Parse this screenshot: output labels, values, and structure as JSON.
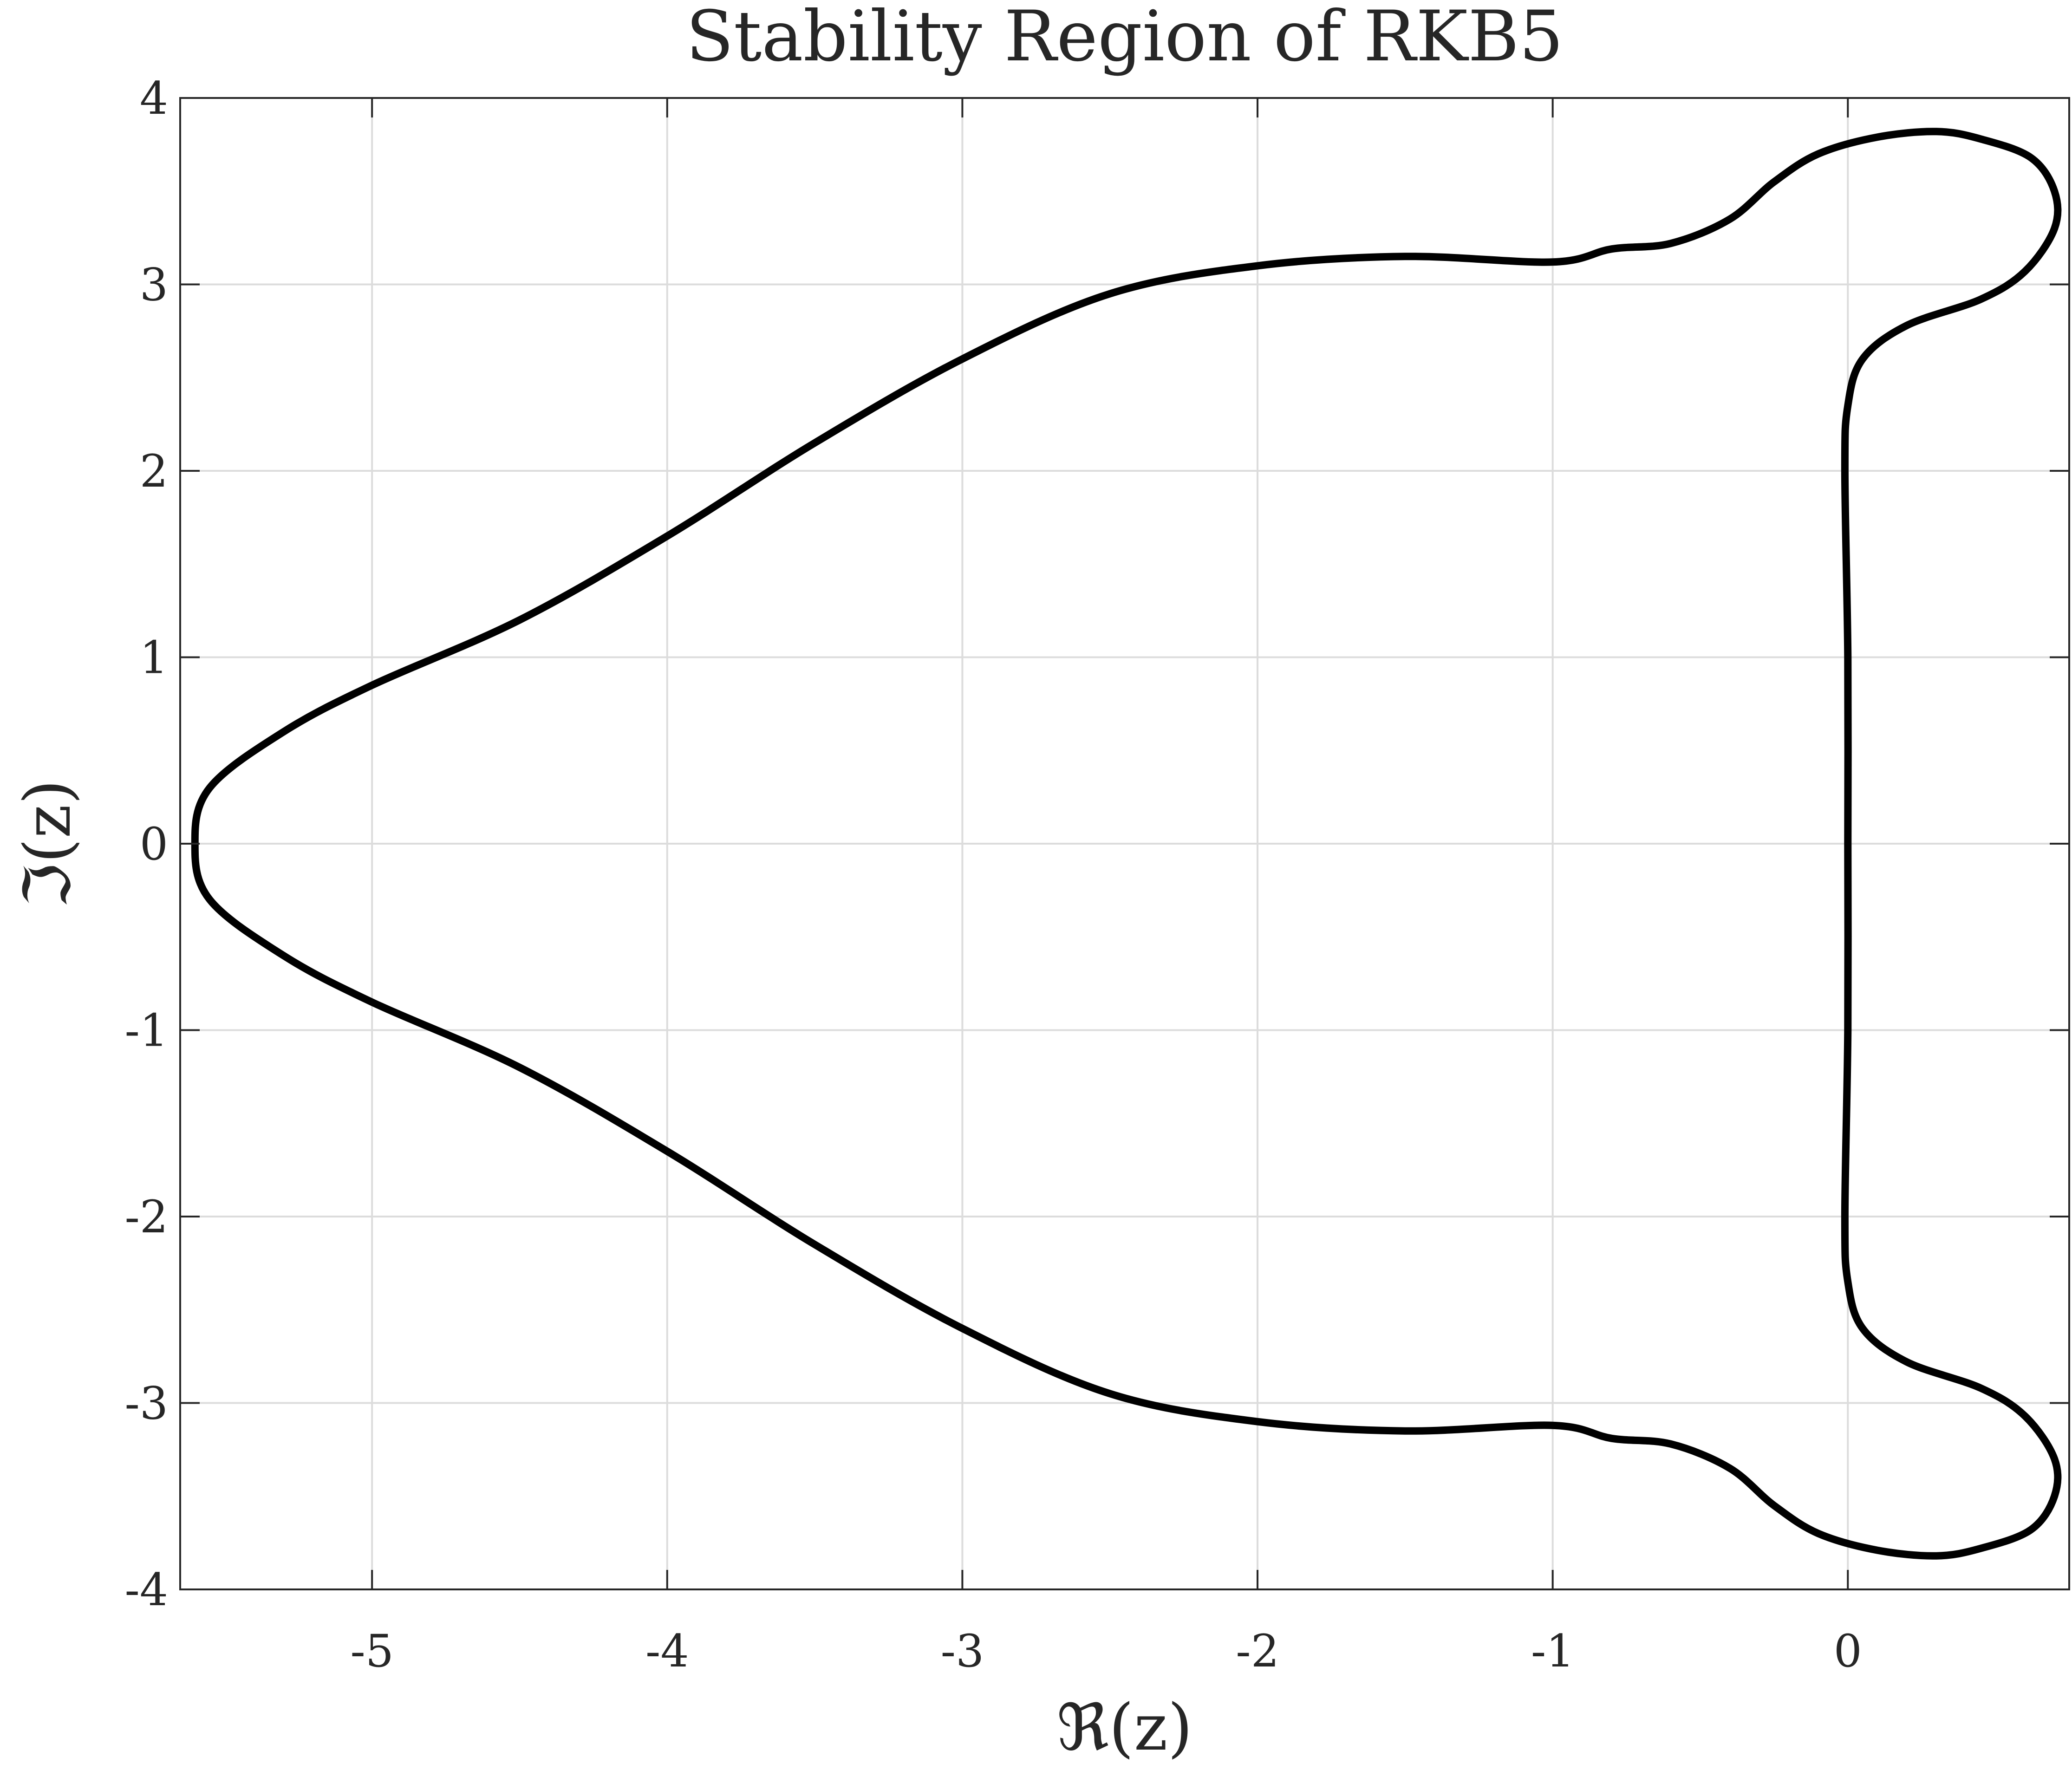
{
  "chart_data": {
    "type": "line",
    "title": "Stability Region of RKB5",
    "xlabel": "ℜ(z)",
    "ylabel": "ℑ(z)",
    "xlim": [
      -5.65,
      0.75
    ],
    "ylim": [
      -4,
      4
    ],
    "grid": true,
    "x_ticks": [
      -5,
      -4,
      -3,
      -2,
      -1,
      0
    ],
    "y_ticks": [
      -4,
      -3,
      -2,
      -1,
      0,
      1,
      2,
      3,
      4
    ],
    "x_tick_labels": [
      "-5",
      "-4",
      "-3",
      "-2",
      "-1",
      "0"
    ],
    "y_tick_labels": [
      "-4",
      "-3",
      "-2",
      "-1",
      "0",
      "1",
      "2",
      "3",
      "4"
    ],
    "line_color": "#000000",
    "series": [
      {
        "closed": true,
        "points": [
          [
            0.0,
            0.0
          ],
          [
            0.0,
            1.0
          ],
          [
            -0.01,
            2.0
          ],
          [
            0.0,
            2.35
          ],
          [
            0.05,
            2.6
          ],
          [
            0.2,
            2.78
          ],
          [
            0.45,
            2.92
          ],
          [
            0.6,
            3.07
          ],
          [
            0.7,
            3.3
          ],
          [
            0.7,
            3.5
          ],
          [
            0.62,
            3.68
          ],
          [
            0.45,
            3.78
          ],
          [
            0.3,
            3.82
          ],
          [
            0.1,
            3.79
          ],
          [
            -0.1,
            3.7
          ],
          [
            -0.25,
            3.55
          ],
          [
            -0.4,
            3.35
          ],
          [
            -0.6,
            3.22
          ],
          [
            -0.8,
            3.19
          ],
          [
            -1.0,
            3.12
          ],
          [
            -1.5,
            3.15
          ],
          [
            -2.0,
            3.1
          ],
          [
            -2.5,
            2.95
          ],
          [
            -3.0,
            2.6
          ],
          [
            -3.5,
            2.15
          ],
          [
            -4.0,
            1.65
          ],
          [
            -4.5,
            1.2
          ],
          [
            -5.0,
            0.85
          ],
          [
            -5.3,
            0.6
          ],
          [
            -5.55,
            0.3
          ],
          [
            -5.6,
            0.0
          ],
          [
            -5.55,
            -0.3
          ],
          [
            -5.3,
            -0.6
          ],
          [
            -5.0,
            -0.85
          ],
          [
            -4.5,
            -1.2
          ],
          [
            -4.0,
            -1.65
          ],
          [
            -3.5,
            -2.15
          ],
          [
            -3.0,
            -2.6
          ],
          [
            -2.5,
            -2.95
          ],
          [
            -2.0,
            -3.1
          ],
          [
            -1.5,
            -3.15
          ],
          [
            -1.0,
            -3.12
          ],
          [
            -0.8,
            -3.19
          ],
          [
            -0.6,
            -3.22
          ],
          [
            -0.4,
            -3.35
          ],
          [
            -0.25,
            -3.55
          ],
          [
            -0.1,
            -3.7
          ],
          [
            0.1,
            -3.79
          ],
          [
            0.3,
            -3.82
          ],
          [
            0.45,
            -3.78
          ],
          [
            0.62,
            -3.68
          ],
          [
            0.7,
            -3.5
          ],
          [
            0.7,
            -3.3
          ],
          [
            0.6,
            -3.07
          ],
          [
            0.45,
            -2.92
          ],
          [
            0.2,
            -2.78
          ],
          [
            0.05,
            -2.6
          ],
          [
            0.0,
            -2.35
          ],
          [
            -0.01,
            -2.0
          ],
          [
            0.0,
            -1.0
          ]
        ]
      }
    ]
  }
}
